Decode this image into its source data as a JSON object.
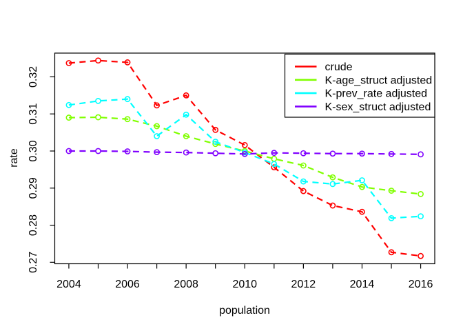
{
  "chart_data": {
    "type": "line",
    "title": "",
    "xlabel": "population",
    "ylabel": "rate",
    "line_style": "dashed",
    "marker": "open-circle",
    "grid": false,
    "legend_position": "topright",
    "xlim": [
      2003.52,
      2016.48
    ],
    "ylim": [
      0.2696,
      0.3264
    ],
    "x": [
      2004,
      2005,
      2006,
      2007,
      2008,
      2009,
      2010,
      2011,
      2012,
      2013,
      2014,
      2015,
      2016
    ],
    "x_ticks": [
      2004,
      2005,
      2006,
      2007,
      2008,
      2009,
      2010,
      2011,
      2012,
      2013,
      2014,
      2015,
      2016
    ],
    "x_tick_labels": [
      "2004",
      "",
      "2006",
      "",
      "2008",
      "",
      "2010",
      "",
      "2012",
      "",
      "2014",
      "",
      "2016"
    ],
    "y_ticks": [
      0.27,
      0.28,
      0.29,
      0.3,
      0.31,
      0.32
    ],
    "y_tick_labels": [
      "0.27",
      "0.28",
      "0.29",
      "0.30",
      "0.31",
      "0.32"
    ],
    "series": [
      {
        "id": "crude",
        "name": "crude",
        "color": "#FF0000",
        "values": [
          0.3237,
          0.3244,
          0.3239,
          0.3123,
          0.315,
          0.3057,
          0.3016,
          0.2956,
          0.2892,
          0.2853,
          0.2836,
          0.2727,
          0.2717
        ]
      },
      {
        "id": "k-age-struct-adjusted",
        "name": "K-age_struct adjusted",
        "color": "#80FF00",
        "values": [
          0.309,
          0.3091,
          0.3086,
          0.3067,
          0.304,
          0.3019,
          0.3,
          0.2979,
          0.2961,
          0.2929,
          0.2903,
          0.2893,
          0.2884
        ]
      },
      {
        "id": "k-prev-rate-adjusted",
        "name": "K-prev_rate adjusted",
        "color": "#00FFFF",
        "values": [
          0.3124,
          0.3135,
          0.314,
          0.304,
          0.3098,
          0.3025,
          0.2996,
          0.2965,
          0.2918,
          0.2911,
          0.2921,
          0.2819,
          0.2824
        ]
      },
      {
        "id": "k-sex-struct-adjusted",
        "name": "K-sex_struct adjusted",
        "color": "#8000FF",
        "values": [
          0.3,
          0.3,
          0.2999,
          0.2997,
          0.2996,
          0.2994,
          0.2992,
          0.2995,
          0.2994,
          0.2993,
          0.2993,
          0.2992,
          0.2991
        ]
      }
    ]
  }
}
